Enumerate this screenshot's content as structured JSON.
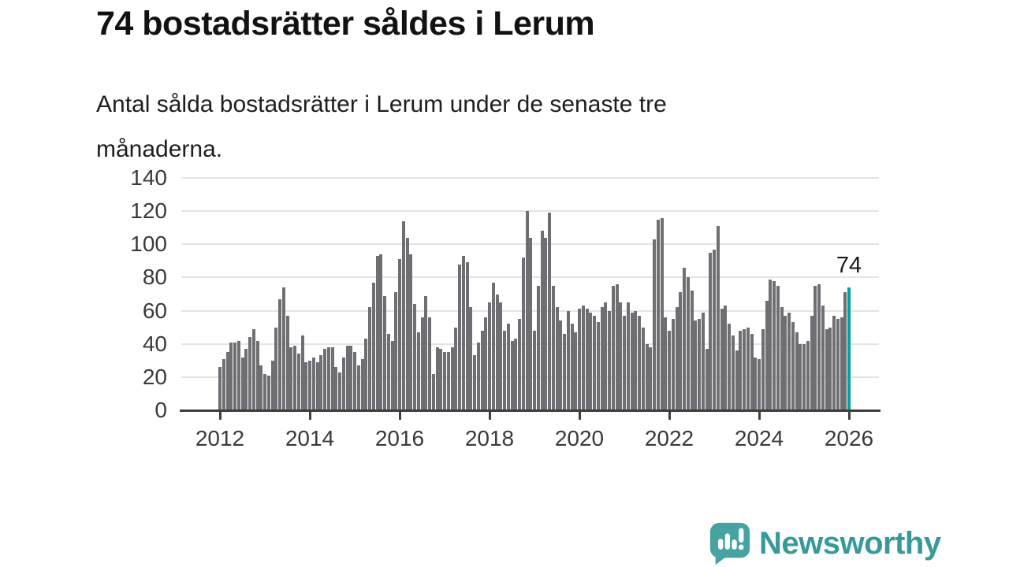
{
  "header": {
    "title": "74 bostadsrätter såldes i Lerum",
    "subtitle_line1": "Antal sålda bostadsrätter i Lerum under de senaste tre",
    "subtitle_line2": "månaderna."
  },
  "chart_data": {
    "type": "bar",
    "title": "74 bostadsrätter såldes i Lerum",
    "description": "Antal sålda bostadsrätter i Lerum under de senaste tre månaderna.",
    "x_unit": "month",
    "x_start": "2012-01",
    "x_end": "2026-01",
    "ylim": [
      0,
      140
    ],
    "yticks": [
      0,
      20,
      40,
      60,
      80,
      100,
      120,
      140
    ],
    "xticks": [
      2012,
      2014,
      2016,
      2018,
      2020,
      2022,
      2024,
      2026
    ],
    "grid": "horizontal",
    "legend": "none",
    "values": [
      26,
      31,
      35,
      41,
      41,
      42,
      32,
      37,
      44,
      49,
      42,
      27,
      22,
      21,
      30,
      50,
      67,
      74,
      57,
      38,
      39,
      34,
      45,
      29,
      30,
      32,
      29,
      33,
      37,
      38,
      38,
      26,
      23,
      32,
      39,
      39,
      35,
      27,
      31,
      43,
      62,
      77,
      93,
      94,
      69,
      46,
      42,
      71,
      91,
      114,
      104,
      94,
      64,
      47,
      56,
      69,
      56,
      22,
      38,
      37,
      35,
      35,
      38,
      50,
      88,
      93,
      89,
      62,
      33,
      41,
      48,
      56,
      65,
      77,
      70,
      65,
      48,
      52,
      42,
      43,
      55,
      92,
      120,
      104,
      48,
      75,
      108,
      104,
      119,
      75,
      62,
      54,
      46,
      60,
      52,
      47,
      61,
      63,
      61,
      59,
      57,
      53,
      62,
      65,
      60,
      75,
      76,
      65,
      57,
      65,
      59,
      60,
      57,
      50,
      40,
      38,
      103,
      115,
      116,
      56,
      48,
      55,
      62,
      71,
      86,
      80,
      72,
      54,
      55,
      59,
      37,
      95,
      97,
      111,
      61,
      63,
      52,
      45,
      36,
      48,
      49,
      50,
      46,
      32,
      31,
      49,
      66,
      79,
      78,
      75,
      62,
      57,
      59,
      53,
      47,
      40,
      40,
      42,
      57,
      75,
      76,
      63,
      49,
      50,
      57,
      55,
      56,
      71,
      74
    ],
    "highlight_last_value": 74,
    "annotation_label": "74",
    "bar_color": "#6e6e73",
    "highlight_color": "#00a49f"
  },
  "footer": {
    "brand_name": "Newsworthy",
    "brand_color": "#38999a",
    "icon": "newsworthy-speech-bubble-chart-icon"
  },
  "colors": {
    "text": "#121212",
    "axis_text": "#3a3a3a",
    "gridline": "#e3e3e3",
    "axis_line": "#3d3d3d",
    "background": "#ffffff"
  }
}
